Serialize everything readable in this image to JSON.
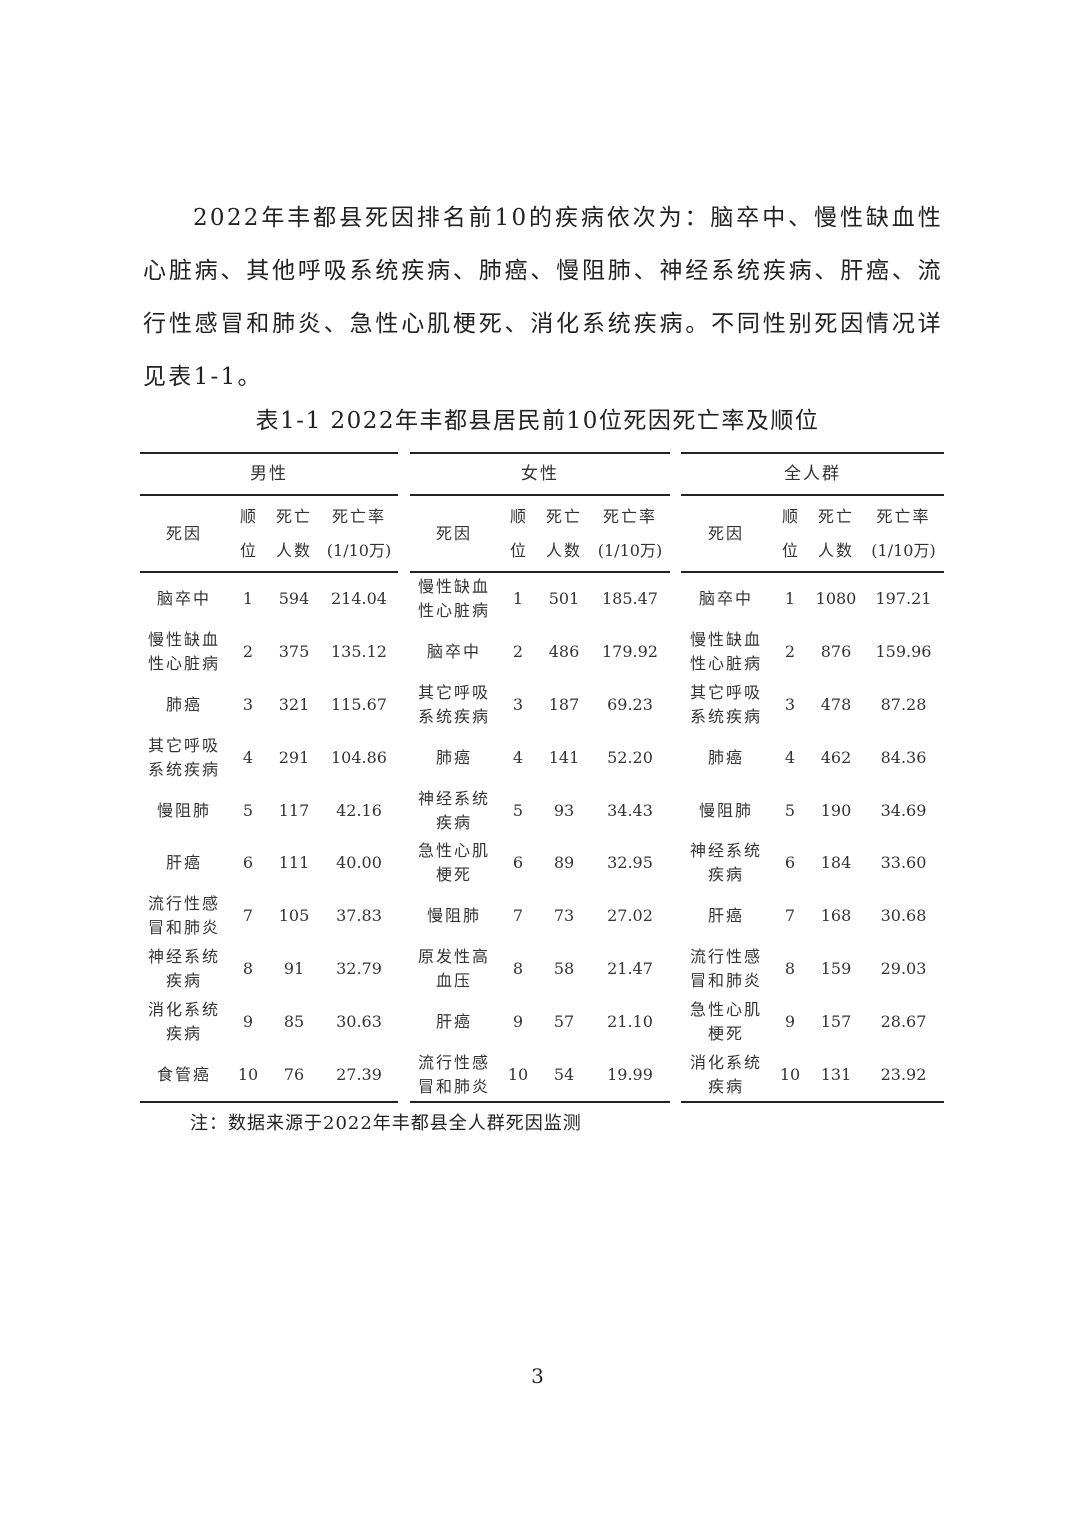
{
  "paragraph": "2022年丰都县死因排名前10的疾病依次为：脑卒中、慢性缺血性心脏病、其他呼吸系统疾病、肺癌、慢阻肺、神经系统疾病、肝癌、流行性感冒和肺炎、急性心肌梗死、消化系统疾病。不同性别死因情况详见表1-1。",
  "table": {
    "caption": "表1-1 2022年丰都县居民前10位死因死亡率及顺位",
    "columns": {
      "cause": "死因",
      "rank": "顺位",
      "deaths": "死亡人数",
      "rate": "死亡率",
      "rate_unit": "(1/10万)"
    },
    "groups": [
      {
        "title": "男性",
        "rows": [
          [
            "脑卒中",
            "1",
            "594",
            "214.04"
          ],
          [
            "慢性缺血性心脏病",
            "2",
            "375",
            "135.12"
          ],
          [
            "肺癌",
            "3",
            "321",
            "115.67"
          ],
          [
            "其它呼吸系统疾病",
            "4",
            "291",
            "104.86"
          ],
          [
            "慢阻肺",
            "5",
            "117",
            "42.16"
          ],
          [
            "肝癌",
            "6",
            "111",
            "40.00"
          ],
          [
            "流行性感冒和肺炎",
            "7",
            "105",
            "37.83"
          ],
          [
            "神经系统疾病",
            "8",
            "91",
            "32.79"
          ],
          [
            "消化系统疾病",
            "9",
            "85",
            "30.63"
          ],
          [
            "食管癌",
            "10",
            "76",
            "27.39"
          ]
        ]
      },
      {
        "title": "女性",
        "rows": [
          [
            "慢性缺血性心脏病",
            "1",
            "501",
            "185.47"
          ],
          [
            "脑卒中",
            "2",
            "486",
            "179.92"
          ],
          [
            "其它呼吸系统疾病",
            "3",
            "187",
            "69.23"
          ],
          [
            "肺癌",
            "4",
            "141",
            "52.20"
          ],
          [
            "神经系统疾病",
            "5",
            "93",
            "34.43"
          ],
          [
            "急性心肌梗死",
            "6",
            "89",
            "32.95"
          ],
          [
            "慢阻肺",
            "7",
            "73",
            "27.02"
          ],
          [
            "原发性高血压",
            "8",
            "58",
            "21.47"
          ],
          [
            "肝癌",
            "9",
            "57",
            "21.10"
          ],
          [
            "流行性感冒和肺炎",
            "10",
            "54",
            "19.99"
          ]
        ]
      },
      {
        "title": "全人群",
        "rows": [
          [
            "脑卒中",
            "1",
            "1080",
            "197.21"
          ],
          [
            "慢性缺血性心脏病",
            "2",
            "876",
            "159.96"
          ],
          [
            "其它呼吸系统疾病",
            "3",
            "478",
            "87.28"
          ],
          [
            "肺癌",
            "4",
            "462",
            "84.36"
          ],
          [
            "慢阻肺",
            "5",
            "190",
            "34.69"
          ],
          [
            "神经系统疾病",
            "6",
            "184",
            "33.60"
          ],
          [
            "肝癌",
            "7",
            "168",
            "30.68"
          ],
          [
            "流行性感冒和肺炎",
            "8",
            "159",
            "29.03"
          ],
          [
            "急性心肌梗死",
            "9",
            "157",
            "28.67"
          ],
          [
            "消化系统疾病",
            "10",
            "131",
            "23.92"
          ]
        ]
      }
    ],
    "note": "注：数据来源于2022年丰都县全人群死因监测"
  },
  "page_number": "3"
}
